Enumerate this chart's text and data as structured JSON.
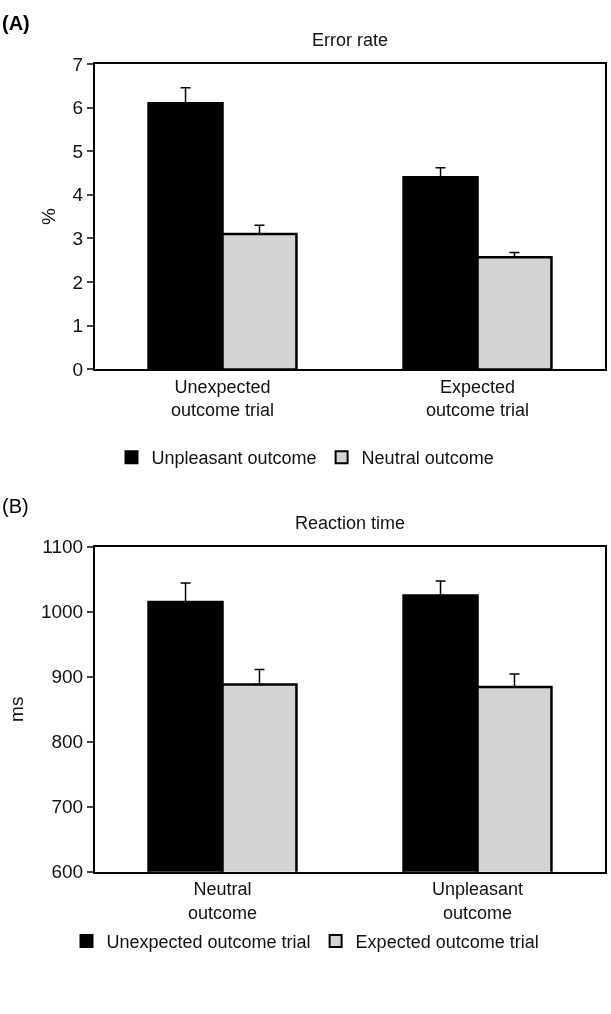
{
  "chart_data": [
    {
      "type": "bar",
      "title": "Error rate",
      "ylabel": "%",
      "annotations": [
        "(A)"
      ],
      "categories": [
        "Unexpected outcome trial",
        "Expected outcome trial"
      ],
      "series": [
        {
          "name": "Unpleasant outcome",
          "color": "#000000",
          "values": [
            6.1,
            4.4
          ],
          "errors": [
            [
              6.1,
              6.45
            ],
            [
              4.4,
              4.62
            ]
          ]
        },
        {
          "name": "Neutral outcome",
          "color": "#d4d4d4",
          "values": [
            3.1,
            2.57
          ],
          "errors": [
            [
              3.1,
              3.3
            ],
            [
              2.57,
              2.68
            ]
          ]
        }
      ],
      "ylim": [
        0,
        7
      ],
      "yticks": [
        0,
        1,
        2,
        3,
        4,
        5,
        6,
        7
      ],
      "legend": "bottom"
    },
    {
      "type": "bar",
      "title": "Reaction time",
      "ylabel": "ms",
      "annotations": [
        "(B)"
      ],
      "categories": [
        "Neutral outcome",
        "Unpleasant outcome"
      ],
      "series": [
        {
          "name": "Unexpected outcome trial",
          "color": "#000000",
          "values": [
            1015,
            1025
          ],
          "errors": [
            [
              1015,
              1044
            ],
            [
              1025,
              1047
            ]
          ]
        },
        {
          "name": "Expected outcome trial",
          "color": "#d4d4d4",
          "values": [
            888,
            884
          ],
          "errors": [
            [
              888,
              911
            ],
            [
              884,
              904
            ]
          ]
        }
      ],
      "ylim": [
        600,
        1100
      ],
      "yticks": [
        600,
        700,
        800,
        900,
        1000,
        1100
      ],
      "legend": "bottom"
    }
  ]
}
